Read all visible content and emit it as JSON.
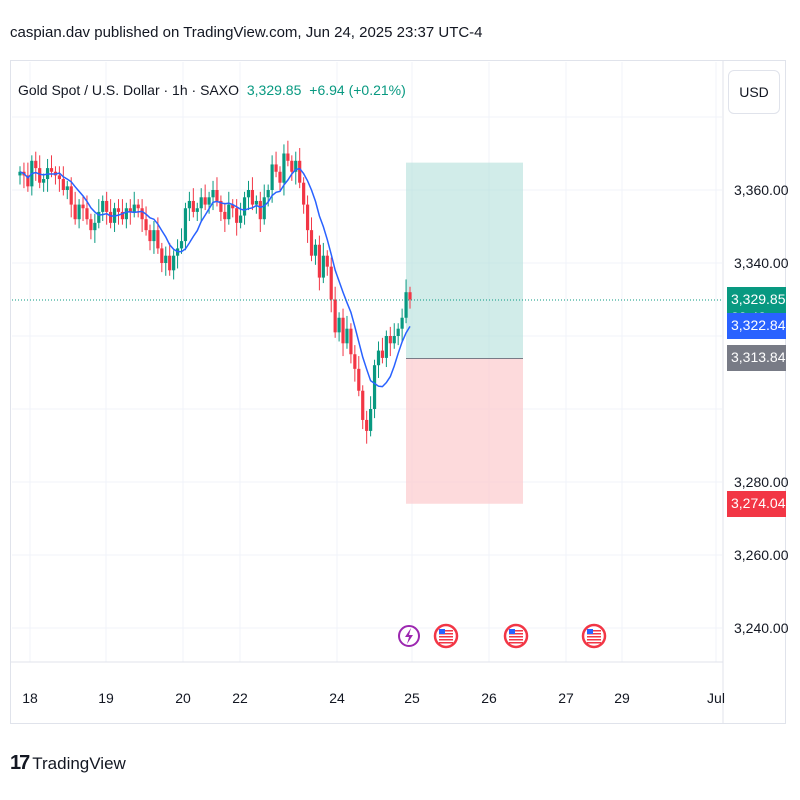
{
  "header": {
    "published": "caspian.dav published on TradingView.com, Jun 24, 2025 23:37 UTC-4"
  },
  "legend": {
    "symbol": "Gold Spot / U.S. Dollar · 1h · SAXO",
    "price": "3,329.85",
    "change": "+6.94 (+0.21%)"
  },
  "currency": "USD",
  "brand": {
    "logo": "17",
    "name": "TradingView"
  },
  "colors": {
    "up": "#089981",
    "down": "#f23645",
    "ma": "#2962ff",
    "profit_zone": "#b2dfdb",
    "loss_zone": "#fccbcd"
  },
  "chart_data": {
    "type": "candlestick",
    "y_ticks": [
      "3,360.00",
      "3,340.00",
      "3,280.00",
      "3,260.00",
      "3,240.00"
    ],
    "y_tick_values": [
      3360,
      3340,
      3280,
      3260,
      3240
    ],
    "x_ticks": [
      "18",
      "19",
      "20",
      "22",
      "24",
      "25",
      "26",
      "27",
      "29",
      "Jul"
    ],
    "ylim": [
      3230,
      3378
    ],
    "price_tags": [
      {
        "label": "3,329.85",
        "sub": "22:43",
        "value": 3329.85,
        "color": "#089981"
      },
      {
        "label": "3,322.84",
        "value": 3322.84,
        "color": "#2962ff"
      },
      {
        "label": "3,313.84",
        "value": 3313.84,
        "color": "#787b86"
      },
      {
        "label": "3,274.04",
        "value": 3274.04,
        "color": "#f23645"
      }
    ],
    "position": {
      "entry": 3313.84,
      "target": 3367.5,
      "stop": 3274.04
    },
    "last_price": 3329.85,
    "closes": [
      3365,
      3364,
      3361,
      3368,
      3366,
      3362,
      3363,
      3366,
      3365,
      3364,
      3363,
      3360,
      3361,
      3356,
      3352,
      3356,
      3355,
      3352,
      3349,
      3351,
      3354,
      3357,
      3354,
      3351,
      3355,
      3354,
      3352,
      3355,
      3354,
      3356,
      3355,
      3352,
      3349,
      3346,
      3349,
      3344,
      3340,
      3342,
      3338,
      3342,
      3344,
      3346,
      3355,
      3357,
      3354,
      3355,
      3358,
      3356,
      3358,
      3360,
      3357,
      3354,
      3352,
      3356,
      3355,
      3351,
      3353,
      3358,
      3360,
      3356,
      3357,
      3352,
      3358,
      3360,
      3367,
      3365,
      3362,
      3370,
      3368,
      3365,
      3368,
      3362,
      3356,
      3349,
      3342,
      3345,
      3336,
      3342,
      3339,
      3330,
      3321,
      3325,
      3318,
      3322,
      3315,
      3311,
      3305,
      3297,
      3294,
      3300,
      3312,
      3316,
      3314,
      3320,
      3318,
      3320,
      3322,
      3325,
      3332,
      3330
    ]
  }
}
